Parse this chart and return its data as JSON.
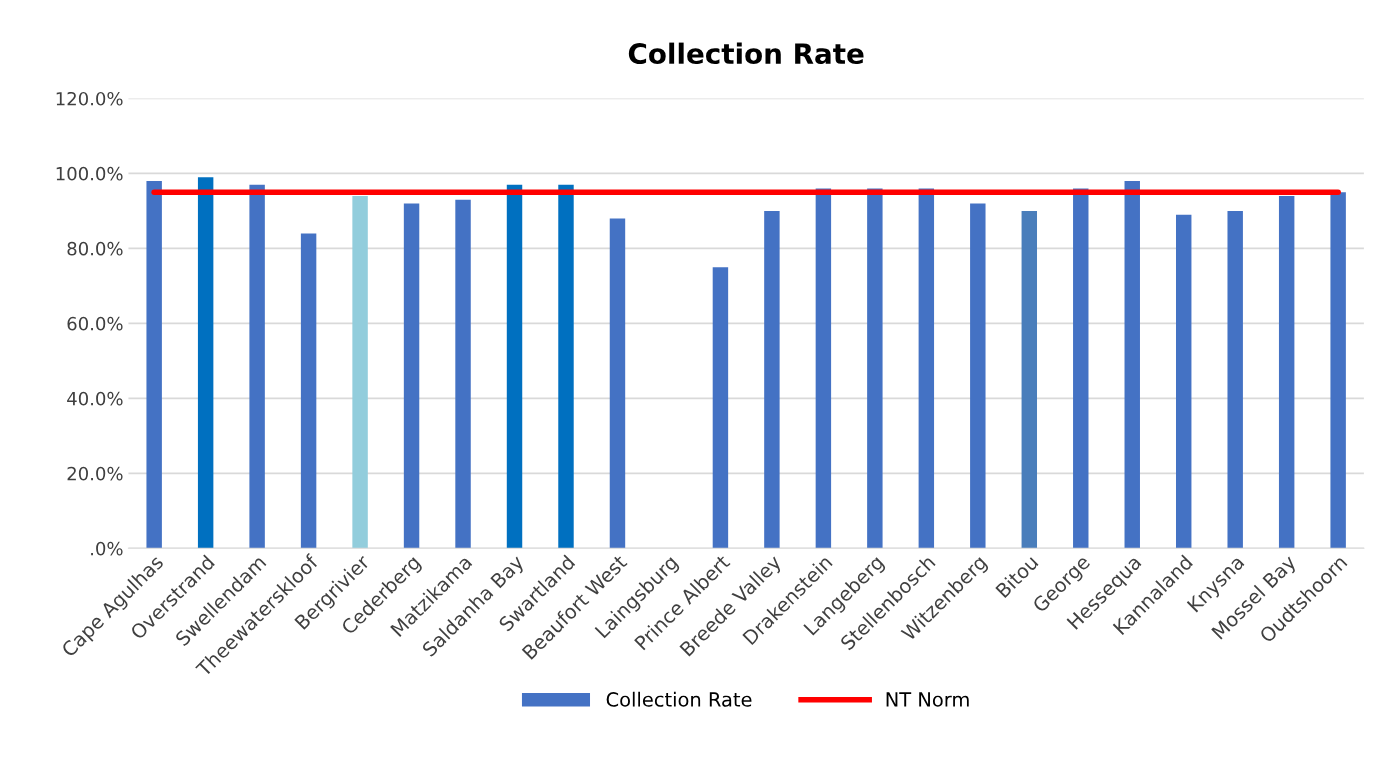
{
  "chart_data": {
    "type": "bar",
    "title": "Collection Rate",
    "categories": [
      "Cape Agulhas",
      "Overstrand",
      "Swellendam",
      "Theewaterskloof",
      "Bergrivier",
      "Cederberg",
      "Matzikama",
      "Saldanha Bay",
      "Swartland",
      "Beaufort West",
      "Laingsburg",
      "Prince Albert",
      "Breede Valley",
      "Drakenstein",
      "Langeberg",
      "Stellenbosch",
      "Witzenberg",
      "Bitou",
      "George",
      "Hessequa",
      "Kannaland",
      "Knysna",
      "Mossel Bay",
      "Oudtshoorn"
    ],
    "series": [
      {
        "name": "Collection Rate",
        "color": "#4472c4",
        "colors": [
          "#4472c4",
          "#0070c0",
          "#4472c4",
          "#4472c4",
          "#92cddc",
          "#4472c4",
          "#4472c4",
          "#0070c0",
          "#0070c0",
          "#4472c4",
          "#4472c4",
          "#4472c4",
          "#4472c4",
          "#4472c4",
          "#4472c4",
          "#4472c4",
          "#4472c4",
          "#4a7ebb",
          "#4472c4",
          "#4472c4",
          "#4472c4",
          "#4472c4",
          "#4472c4",
          "#4472c4"
        ],
        "values": [
          98,
          99,
          97,
          84,
          94,
          92,
          93,
          97,
          97,
          88,
          null,
          75,
          90,
          96,
          96,
          96,
          92,
          90,
          96,
          98,
          89,
          90,
          94,
          95
        ]
      },
      {
        "name": "NT Norm",
        "type": "line",
        "color": "#ff0000",
        "values": [
          95,
          95,
          95,
          95,
          95,
          95,
          95,
          95,
          95,
          95,
          95,
          95,
          95,
          95,
          95,
          95,
          95,
          95,
          95,
          95,
          95,
          95,
          95,
          95
        ]
      }
    ],
    "ylim": [
      0,
      120
    ],
    "yticks": [
      {
        "value": 0,
        "label": ".0%"
      },
      {
        "value": 20,
        "label": "20.0%"
      },
      {
        "value": 40,
        "label": "40.0%"
      },
      {
        "value": 60,
        "label": "60.0%"
      },
      {
        "value": 80,
        "label": "80.0%"
      },
      {
        "value": 100,
        "label": "100.0%"
      },
      {
        "value": 120,
        "label": "120.0%"
      }
    ],
    "grid": "y",
    "legend": "bottom"
  }
}
